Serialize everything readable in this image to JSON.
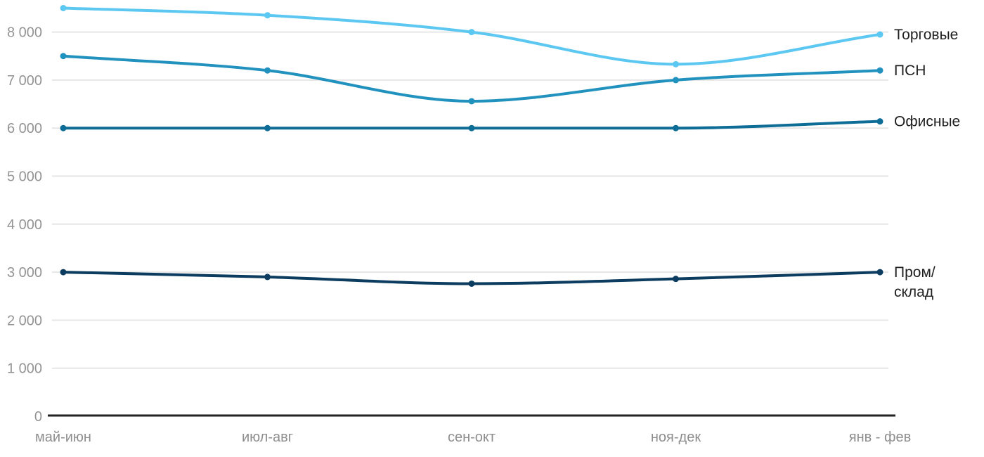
{
  "chart_data": {
    "type": "line",
    "title": "",
    "xlabel": "",
    "ylabel": "",
    "categories": [
      "май-июн",
      "июл-авг",
      "сен-окт",
      "ноя-дек",
      "янв - фев"
    ],
    "series": [
      {
        "name": "Торговые",
        "slug": "torgovye",
        "label_lines": [
          "Торговые"
        ],
        "color": "#5cc8f2",
        "values": [
          8500,
          8350,
          8000,
          7330,
          7950
        ]
      },
      {
        "name": "ПСН",
        "slug": "psn",
        "label_lines": [
          "ПСН"
        ],
        "color": "#2191be",
        "values": [
          7500,
          7200,
          6560,
          7000,
          7200
        ]
      },
      {
        "name": "Офисные",
        "slug": "ofisnye",
        "label_lines": [
          "Офисные"
        ],
        "color": "#0e6d96",
        "values": [
          6000,
          6000,
          6000,
          6000,
          6140
        ]
      },
      {
        "name": "Пром/склад",
        "slug": "prom-sklad",
        "label_lines": [
          "Пром/",
          "склад"
        ],
        "color": "#0c3c5f",
        "values": [
          3000,
          2900,
          2760,
          2860,
          3000
        ]
      }
    ],
    "ylim": [
      0,
      8660
    ],
    "y_ticks": [
      0,
      1000,
      2000,
      3000,
      4000,
      5000,
      6000,
      7000,
      8000
    ],
    "y_tick_labels": [
      "0",
      "1 000",
      "2 000",
      "3 000",
      "4 000",
      "5 000",
      "6 000",
      "7 000",
      "8 000"
    ],
    "grid": true,
    "legend_position": "right-of-last-point",
    "colors": {
      "gridline": "#e6e6e6",
      "axis_line": "#222222",
      "y_label": "#949494",
      "x_label": "#8e8e8e",
      "series_label": "#1f1f1f",
      "background": "#ffffff"
    }
  }
}
